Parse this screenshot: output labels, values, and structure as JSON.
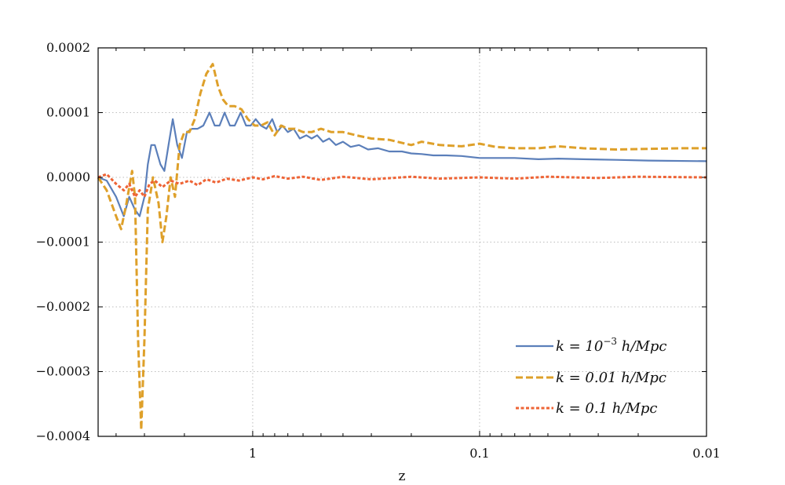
{
  "chart_data": {
    "type": "line",
    "xlabel": "z",
    "ylabel": "",
    "x_scale": "log",
    "x_direction": "decreasing",
    "xlim": [
      4.8,
      0.01
    ],
    "ylim": [
      -0.0004,
      0.0002
    ],
    "grid": true,
    "legend_position": "bottom-right",
    "x_ticks": [
      {
        "value": 1,
        "label": "1"
      },
      {
        "value": 0.1,
        "label": "0.1"
      },
      {
        "value": 0.01,
        "label": "0.01"
      }
    ],
    "y_ticks": [
      {
        "value": 0.0002,
        "label": "0.0002"
      },
      {
        "value": 0.0001,
        "label": "0.0001"
      },
      {
        "value": 0.0,
        "label": "0.0000"
      },
      {
        "value": -0.0001,
        "label": "−0.0001"
      },
      {
        "value": -0.0002,
        "label": "−0.0002"
      },
      {
        "value": -0.0003,
        "label": "−0.0003"
      },
      {
        "value": -0.0004,
        "label": "−0.0004"
      }
    ],
    "series": [
      {
        "name": "k = 10⁻³ h/Mpc",
        "legend_main": "k = 10",
        "legend_sup": "−3",
        "legend_tail": " h/Mpc",
        "color": "#5b7fba",
        "style": "solid",
        "points": [
          [
            4.8,
            0.0
          ],
          [
            4.4,
            -5e-06
          ],
          [
            4.0,
            -3e-05
          ],
          [
            3.7,
            -6e-05
          ],
          [
            3.5,
            -3e-05
          ],
          [
            3.3,
            -5e-05
          ],
          [
            3.15,
            -6e-05
          ],
          [
            3.0,
            -3e-05
          ],
          [
            2.9,
            2e-05
          ],
          [
            2.8,
            5e-05
          ],
          [
            2.7,
            5e-05
          ],
          [
            2.55,
            2e-05
          ],
          [
            2.45,
            1e-05
          ],
          [
            2.35,
            5e-05
          ],
          [
            2.25,
            9e-05
          ],
          [
            2.15,
            5e-05
          ],
          [
            2.05,
            3e-05
          ],
          [
            1.95,
            7e-05
          ],
          [
            1.85,
            7.5e-05
          ],
          [
            1.75,
            7.5e-05
          ],
          [
            1.65,
            8e-05
          ],
          [
            1.55,
            0.0001
          ],
          [
            1.47,
            8e-05
          ],
          [
            1.4,
            8e-05
          ],
          [
            1.33,
            0.0001
          ],
          [
            1.26,
            8e-05
          ],
          [
            1.2,
            8e-05
          ],
          [
            1.13,
            0.0001
          ],
          [
            1.07,
            8e-05
          ],
          [
            1.02,
            8e-05
          ],
          [
            0.97,
            9e-05
          ],
          [
            0.92,
            8e-05
          ],
          [
            0.87,
            7.5e-05
          ],
          [
            0.82,
            9e-05
          ],
          [
            0.78,
            7e-05
          ],
          [
            0.74,
            8e-05
          ],
          [
            0.7,
            7e-05
          ],
          [
            0.66,
            7.5e-05
          ],
          [
            0.62,
            6e-05
          ],
          [
            0.58,
            6.5e-05
          ],
          [
            0.55,
            6e-05
          ],
          [
            0.52,
            6.5e-05
          ],
          [
            0.49,
            5.5e-05
          ],
          [
            0.46,
            6e-05
          ],
          [
            0.43,
            5e-05
          ],
          [
            0.4,
            5.5e-05
          ],
          [
            0.37,
            4.7e-05
          ],
          [
            0.34,
            5e-05
          ],
          [
            0.31,
            4.3e-05
          ],
          [
            0.28,
            4.5e-05
          ],
          [
            0.25,
            4e-05
          ],
          [
            0.22,
            4e-05
          ],
          [
            0.2,
            3.7e-05
          ],
          [
            0.18,
            3.6e-05
          ],
          [
            0.16,
            3.4e-05
          ],
          [
            0.14,
            3.4e-05
          ],
          [
            0.12,
            3.3e-05
          ],
          [
            0.1,
            3e-05
          ],
          [
            0.085,
            3e-05
          ],
          [
            0.07,
            3e-05
          ],
          [
            0.055,
            2.8e-05
          ],
          [
            0.045,
            2.9e-05
          ],
          [
            0.035,
            2.8e-05
          ],
          [
            0.025,
            2.7e-05
          ],
          [
            0.018,
            2.6e-05
          ],
          [
            0.01,
            2.5e-05
          ]
        ]
      },
      {
        "name": "k = 0.01 h/Mpc",
        "legend_main": "k = 0.01",
        "legend_sup": "",
        "legend_tail": " h/Mpc",
        "color": "#dea02a",
        "style": "dashed",
        "points": [
          [
            4.8,
            0.0
          ],
          [
            4.4,
            -2e-05
          ],
          [
            4.0,
            -6e-05
          ],
          [
            3.8,
            -8e-05
          ],
          [
            3.6,
            -4e-05
          ],
          [
            3.4,
            1e-05
          ],
          [
            3.3,
            -3e-05
          ],
          [
            3.2,
            -0.00025
          ],
          [
            3.1,
            -0.00039
          ],
          [
            3.0,
            -0.00025
          ],
          [
            2.9,
            -5e-05
          ],
          [
            2.75,
            0.0
          ],
          [
            2.6,
            -4e-05
          ],
          [
            2.5,
            -0.0001
          ],
          [
            2.4,
            -6e-05
          ],
          [
            2.3,
            0.0
          ],
          [
            2.2,
            -3e-05
          ],
          [
            2.1,
            5e-05
          ],
          [
            2.0,
            7e-05
          ],
          [
            1.9,
            7e-05
          ],
          [
            1.8,
            9e-05
          ],
          [
            1.7,
            0.00013
          ],
          [
            1.6,
            0.00016
          ],
          [
            1.5,
            0.000175
          ],
          [
            1.42,
            0.00014
          ],
          [
            1.35,
            0.00012
          ],
          [
            1.28,
            0.00011
          ],
          [
            1.2,
            0.00011
          ],
          [
            1.12,
            0.000105
          ],
          [
            1.05,
            9e-05
          ],
          [
            0.98,
            8e-05
          ],
          [
            0.92,
            8e-05
          ],
          [
            0.86,
            8.5e-05
          ],
          [
            0.8,
            6.5e-05
          ],
          [
            0.75,
            8e-05
          ],
          [
            0.7,
            7.5e-05
          ],
          [
            0.65,
            7.5e-05
          ],
          [
            0.6,
            7e-05
          ],
          [
            0.55,
            7e-05
          ],
          [
            0.5,
            7.5e-05
          ],
          [
            0.45,
            7e-05
          ],
          [
            0.4,
            7e-05
          ],
          [
            0.35,
            6.5e-05
          ],
          [
            0.3,
            6e-05
          ],
          [
            0.25,
            5.8e-05
          ],
          [
            0.2,
            5e-05
          ],
          [
            0.18,
            5.5e-05
          ],
          [
            0.15,
            5e-05
          ],
          [
            0.12,
            4.8e-05
          ],
          [
            0.1,
            5.2e-05
          ],
          [
            0.085,
            4.7e-05
          ],
          [
            0.07,
            4.5e-05
          ],
          [
            0.055,
            4.5e-05
          ],
          [
            0.045,
            4.8e-05
          ],
          [
            0.035,
            4.5e-05
          ],
          [
            0.025,
            4.3e-05
          ],
          [
            0.018,
            4.4e-05
          ],
          [
            0.013,
            4.5e-05
          ],
          [
            0.01,
            4.5e-05
          ]
        ]
      },
      {
        "name": "k = 0.1 h/Mpc",
        "legend_main": "k = 0.1",
        "legend_sup": "",
        "legend_tail": " h/Mpc",
        "color": "#ee6436",
        "style": "dotted",
        "points": [
          [
            4.8,
            0.0
          ],
          [
            4.4,
            5e-06
          ],
          [
            4.0,
            -1e-05
          ],
          [
            3.7,
            -2e-05
          ],
          [
            3.5,
            -1e-05
          ],
          [
            3.3,
            -3e-05
          ],
          [
            3.15,
            -2e-05
          ],
          [
            3.0,
            -3e-05
          ],
          [
            2.85,
            -1e-05
          ],
          [
            2.7,
            -5e-06
          ],
          [
            2.5,
            -1.5e-05
          ],
          [
            2.3,
            -5e-06
          ],
          [
            2.1,
            -1e-05
          ],
          [
            1.9,
            -5e-06
          ],
          [
            1.75,
            -1.2e-05
          ],
          [
            1.6,
            -3e-06
          ],
          [
            1.45,
            -8e-06
          ],
          [
            1.3,
            -2e-06
          ],
          [
            1.15,
            -5e-06
          ],
          [
            1.0,
            0.0
          ],
          [
            0.9,
            -3e-06
          ],
          [
            0.8,
            2e-06
          ],
          [
            0.7,
            -2e-06
          ],
          [
            0.6,
            1e-06
          ],
          [
            0.5,
            -4e-06
          ],
          [
            0.4,
            1e-06
          ],
          [
            0.3,
            -3e-06
          ],
          [
            0.2,
            1e-06
          ],
          [
            0.15,
            -2e-06
          ],
          [
            0.1,
            0.0
          ],
          [
            0.07,
            -2e-06
          ],
          [
            0.05,
            1e-06
          ],
          [
            0.03,
            -1e-06
          ],
          [
            0.02,
            1e-06
          ],
          [
            0.01,
            0.0
          ]
        ]
      }
    ]
  }
}
